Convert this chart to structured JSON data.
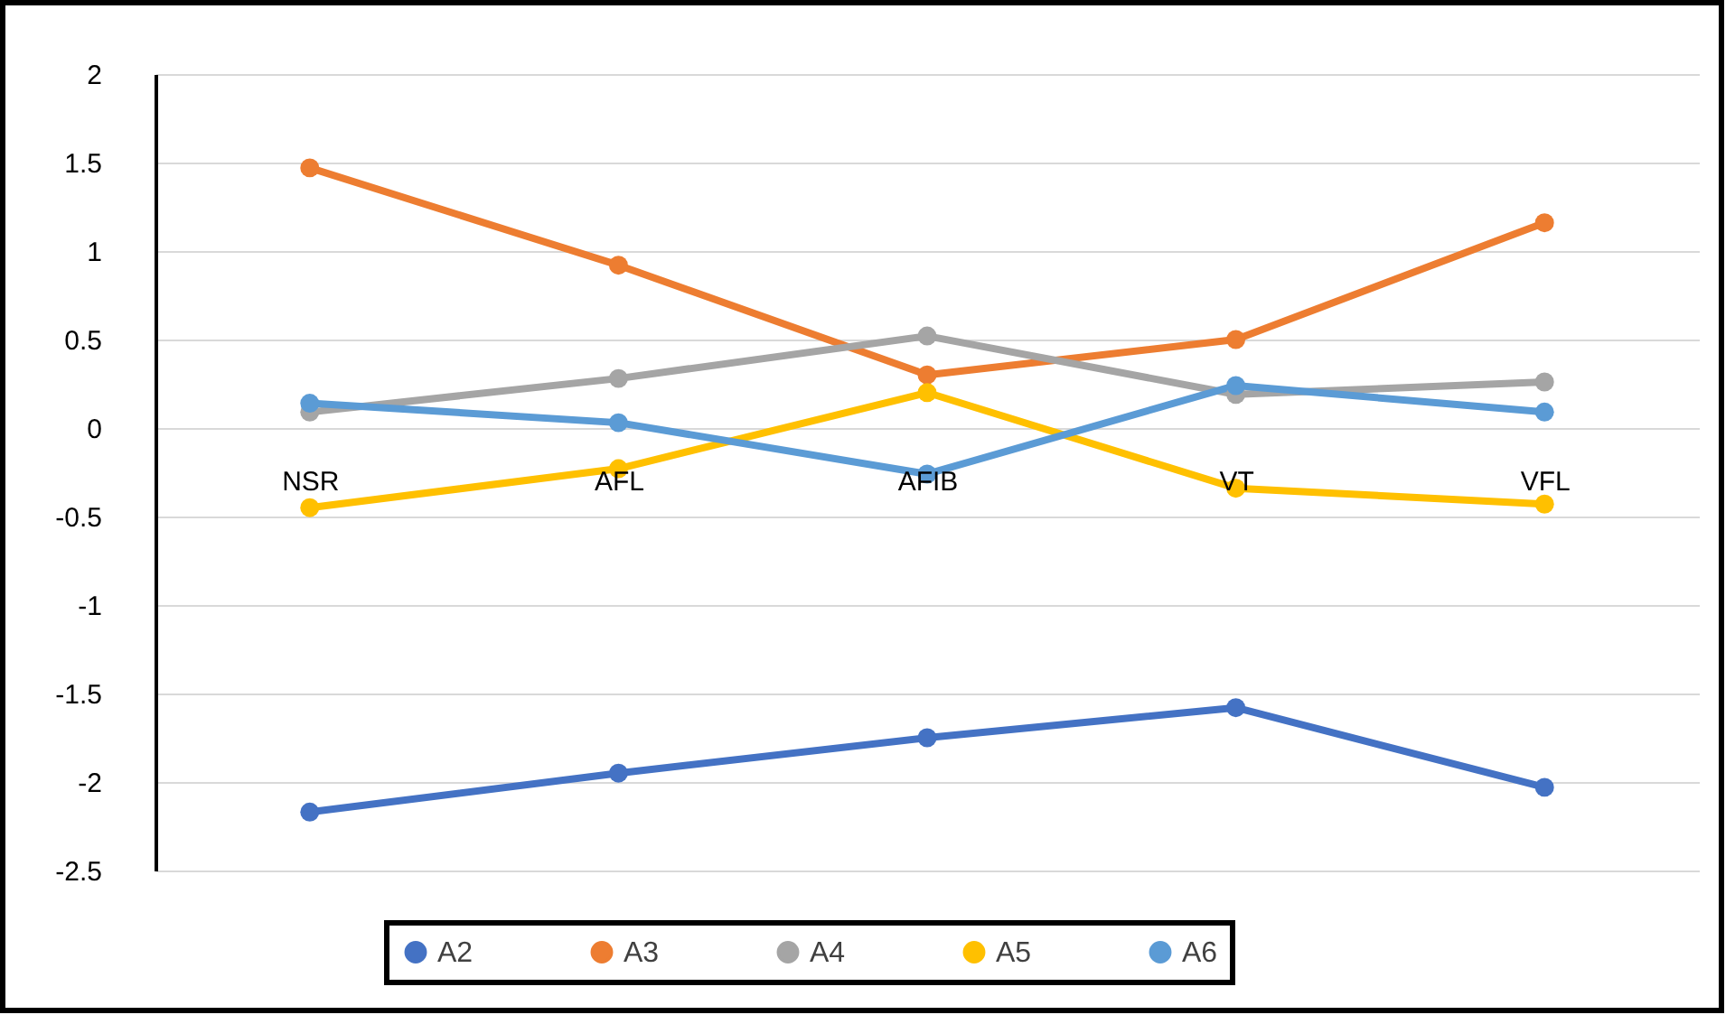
{
  "chart_data": {
    "type": "line",
    "categories": [
      "NSR",
      "AFL",
      "AFIB",
      "VT",
      "VFL"
    ],
    "series": [
      {
        "name": "A2",
        "color": "#4472c4",
        "values": [
          -2.17,
          -1.95,
          -1.75,
          -1.58,
          -2.03
        ]
      },
      {
        "name": "A3",
        "color": "#ed7d31",
        "values": [
          1.47,
          0.92,
          0.3,
          0.5,
          1.16
        ]
      },
      {
        "name": "A4",
        "color": "#a5a5a5",
        "values": [
          0.09,
          0.28,
          0.52,
          0.19,
          0.26
        ]
      },
      {
        "name": "A5",
        "color": "#ffc000",
        "values": [
          -0.45,
          -0.23,
          0.2,
          -0.34,
          -0.43
        ]
      },
      {
        "name": "A6",
        "color": "#5b9bd5",
        "values": [
          0.14,
          0.03,
          -0.26,
          0.24,
          0.09
        ]
      }
    ],
    "ylim": [
      -2.5,
      2
    ],
    "yticks": [
      -2.5,
      {
        "value": -2,
        "label": "-2"
      },
      -1.5,
      {
        "value": -1,
        "label": "-1"
      },
      -0.5,
      {
        "value": 0,
        "label": "0"
      },
      0.5,
      {
        "value": 1,
        "label": "1"
      },
      1.5,
      {
        "value": 2,
        "label": "2"
      }
    ],
    "grid": "y",
    "legend": "bottom",
    "marker": "circle",
    "line_style": "solid"
  }
}
